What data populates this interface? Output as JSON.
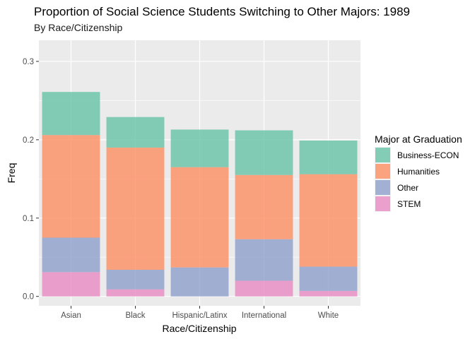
{
  "chart_data": {
    "type": "bar",
    "stacked": true,
    "title": "Proportion of Social Science Students Switching to Other Majors: 1989",
    "subtitle": "By Race/Citizenship",
    "xlabel": "Race/Citizenship",
    "ylabel": "Freq",
    "ylim": [
      -0.012,
      0.327
    ],
    "yticks": [
      0.0,
      0.1,
      0.2,
      0.3
    ],
    "ytick_labels": [
      "0.0",
      "0.1",
      "0.2",
      "0.3"
    ],
    "grid": true,
    "legend": {
      "title": "Major at Graduation",
      "position": "right"
    },
    "categories": [
      "Asian",
      "Black",
      "Hispanic/Latinx",
      "International",
      "White"
    ],
    "series": [
      {
        "name": "STEM",
        "color": "#e78ac3",
        "values": [
          0.031,
          0.009,
          0.0,
          0.02,
          0.007
        ]
      },
      {
        "name": "Other",
        "color": "#8da0cb",
        "values": [
          0.044,
          0.025,
          0.037,
          0.053,
          0.031
        ]
      },
      {
        "name": "Humanities",
        "color": "#fc8d62",
        "values": [
          0.131,
          0.156,
          0.128,
          0.082,
          0.118
        ]
      },
      {
        "name": "Business-ECON",
        "color": "#66c2a5",
        "values": [
          0.055,
          0.039,
          0.048,
          0.057,
          0.043
        ]
      }
    ],
    "legend_order": [
      "Business-ECON",
      "Humanities",
      "Other",
      "STEM"
    ]
  }
}
